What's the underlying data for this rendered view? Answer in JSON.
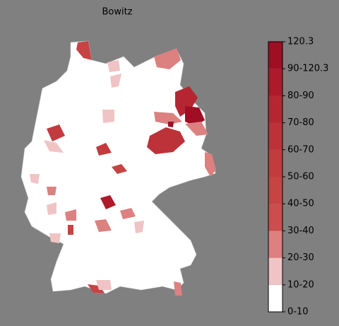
{
  "title": "Bowitz",
  "legend": {
    "labels": [
      "0-10",
      "10-20",
      "20-30",
      "30-40",
      "40-50",
      "50-60",
      "60-70",
      "70-80",
      "80-90",
      "90-120.3",
      "120.3"
    ],
    "colors": [
      "#ffffff",
      "#f0c4c4",
      "#dc8080",
      "#cb4d4d",
      "#c64444",
      "#c23b3f",
      "#bd3239",
      "#b62632",
      "#ae1a2b",
      "#a00e24"
    ]
  }
}
